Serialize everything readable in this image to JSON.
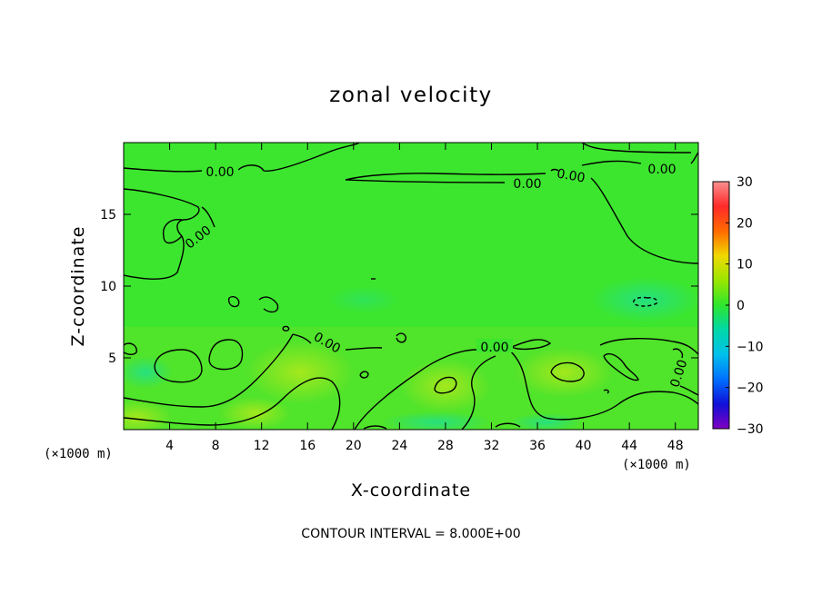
{
  "chart_data": {
    "type": "heatmap",
    "title": "zonal velocity",
    "xlabel": "X-coordinate",
    "ylabel": "Z-coordinate",
    "x_unit_label_left": "(×1000 m)",
    "x_unit_label_right": "(×1000 m)",
    "xlim": [
      0,
      50
    ],
    "ylim": [
      0,
      20
    ],
    "x_ticks": [
      4,
      8,
      12,
      16,
      20,
      24,
      28,
      32,
      36,
      40,
      44,
      48
    ],
    "y_ticks": [
      5,
      10,
      15
    ],
    "colorbar": {
      "min": -30,
      "max": 30,
      "ticks": [
        30,
        20,
        10,
        0,
        -10,
        -20,
        -30
      ],
      "colors": [
        "#fa8f8f",
        "#ff1818",
        "#ff8000",
        "#e6d000",
        "#a6e600",
        "#33e633",
        "#00d8a0",
        "#00c8e6",
        "#0080ff",
        "#1010e0",
        "#8000c0"
      ]
    },
    "contour_interval_text": "CONTOUR INTERVAL = 8.000E+00",
    "contour_labels": [
      "0.00",
      "0.00",
      "0.00",
      "0.00",
      "0.00",
      "0.00",
      "0.00",
      "0.00"
    ],
    "field_summary": [
      {
        "x": 25,
        "z": 14,
        "value": 1
      },
      {
        "x": 45,
        "z": 9,
        "value": -3
      },
      {
        "x": 16,
        "z": 4,
        "value": 4
      },
      {
        "x": 28,
        "z": 3,
        "value": 5
      },
      {
        "x": 38,
        "z": 4,
        "value": 6
      },
      {
        "x": 28,
        "z": 0.5,
        "value": -2
      },
      {
        "x": 2,
        "z": 4,
        "value": -1
      }
    ]
  }
}
